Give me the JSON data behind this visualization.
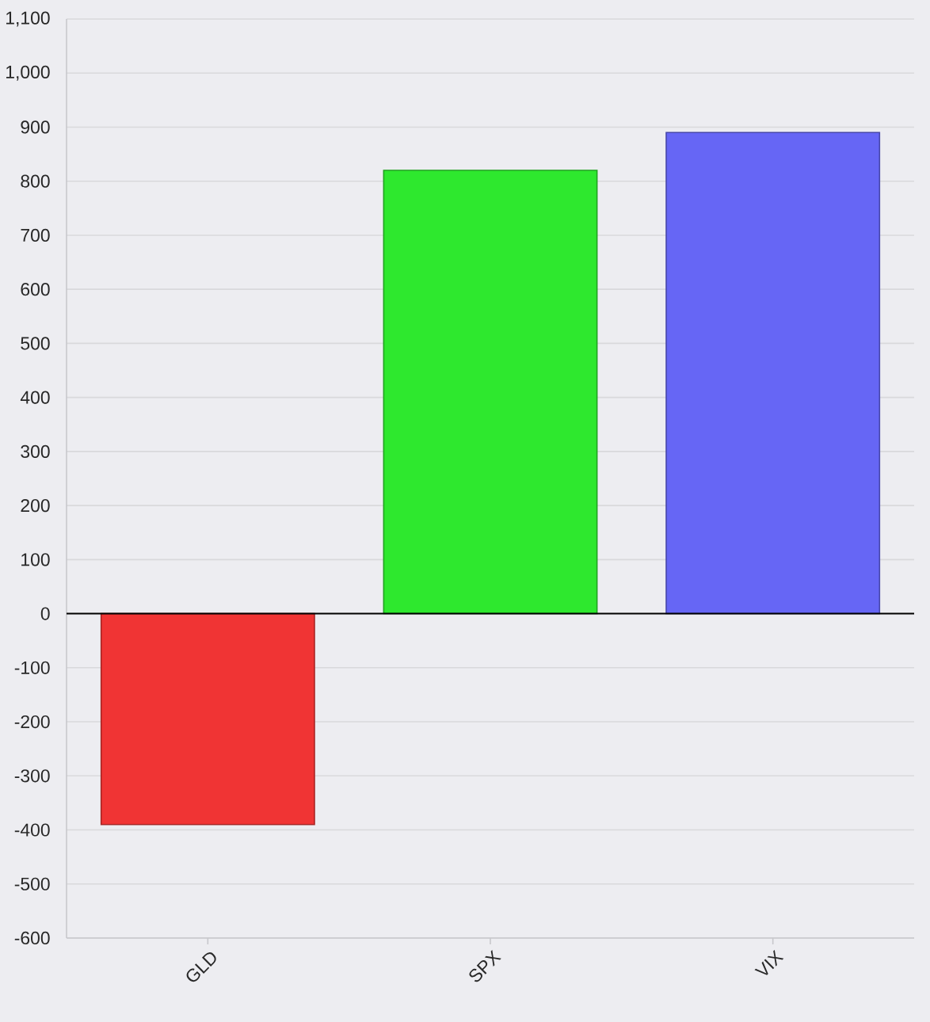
{
  "chart_data": {
    "type": "bar",
    "categories": [
      "GLD",
      "SPX",
      "VIX"
    ],
    "values": [
      -390,
      820,
      890
    ],
    "colors": [
      "#f03434",
      "#2ee82e",
      "#6666f5"
    ],
    "ylim": [
      -600,
      1100
    ],
    "yticks": [
      -600,
      -500,
      -400,
      -300,
      -200,
      -100,
      0,
      100,
      200,
      300,
      400,
      500,
      600,
      700,
      800,
      900,
      {
        "value": 1000,
        "label": "1,000"
      },
      {
        "value": 1100,
        "label": "1,100"
      }
    ],
    "grid": "y"
  }
}
